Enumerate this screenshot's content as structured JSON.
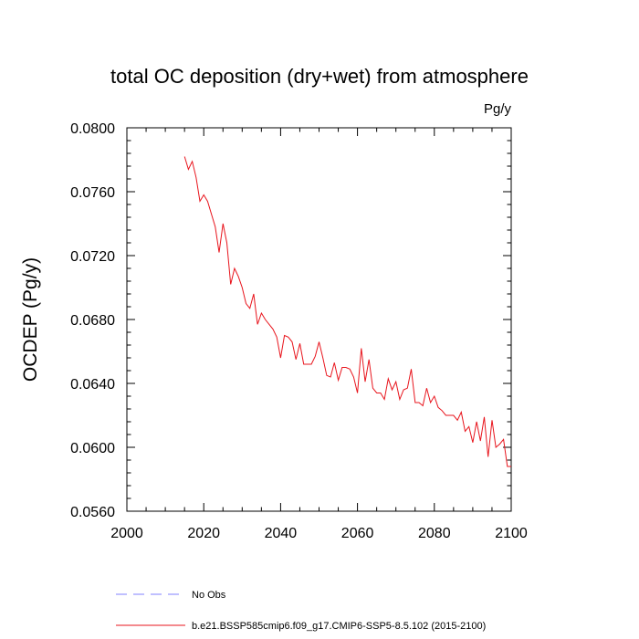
{
  "chart_data": {
    "type": "line",
    "title": "total OC deposition (dry+wet) from atmosphere",
    "units": "Pg/y",
    "xlabel": "",
    "ylabel": "OCDEP  (Pg/y)",
    "xlim": [
      2000,
      2100
    ],
    "ylim": [
      0.056,
      0.08
    ],
    "xticks": [
      2000,
      2020,
      2040,
      2060,
      2080,
      2100
    ],
    "xtick_labels": [
      "2000",
      "2020",
      "2040",
      "2060",
      "2080",
      "2100"
    ],
    "yticks": [
      0.056,
      0.06,
      0.064,
      0.068,
      0.072,
      0.076,
      0.08
    ],
    "ytick_labels": [
      "0.0560",
      "0.0600",
      "0.0640",
      "0.0680",
      "0.0720",
      "0.0760",
      "0.0800"
    ],
    "legend_position": "bottom",
    "series": [
      {
        "name": "b.e21.BSSP585cmip6.f09_g17.CMIP6-SSP5-8.5.102 (2015-2100)",
        "color": "#e8141c",
        "style": "solid",
        "x": [
          2015,
          2016,
          2017,
          2018,
          2019,
          2020,
          2021,
          2022,
          2023,
          2024,
          2025,
          2026,
          2027,
          2028,
          2029,
          2030,
          2031,
          2032,
          2033,
          2034,
          2035,
          2036,
          2037,
          2038,
          2039,
          2040,
          2041,
          2042,
          2043,
          2044,
          2045,
          2046,
          2047,
          2048,
          2049,
          2050,
          2051,
          2052,
          2053,
          2054,
          2055,
          2056,
          2057,
          2058,
          2059,
          2060,
          2061,
          2062,
          2063,
          2064,
          2065,
          2066,
          2067,
          2068,
          2069,
          2070,
          2071,
          2072,
          2073,
          2074,
          2075,
          2076,
          2077,
          2078,
          2079,
          2080,
          2081,
          2082,
          2083,
          2084,
          2085,
          2086,
          2087,
          2088,
          2089,
          2090,
          2091,
          2092,
          2093,
          2094,
          2095,
          2096,
          2097,
          2098,
          2099,
          2100
        ],
        "values": [
          0.0782,
          0.0774,
          0.0779,
          0.0769,
          0.0754,
          0.0758,
          0.0754,
          0.0746,
          0.0738,
          0.0722,
          0.074,
          0.0728,
          0.0702,
          0.0712,
          0.0707,
          0.07,
          0.069,
          0.0687,
          0.0696,
          0.0677,
          0.0684,
          0.068,
          0.0677,
          0.0674,
          0.0669,
          0.0656,
          0.067,
          0.0669,
          0.0666,
          0.0655,
          0.0665,
          0.0652,
          0.0652,
          0.0652,
          0.0657,
          0.0666,
          0.0656,
          0.0645,
          0.0644,
          0.0653,
          0.0642,
          0.065,
          0.065,
          0.0649,
          0.0644,
          0.0634,
          0.0662,
          0.0641,
          0.0655,
          0.0637,
          0.0634,
          0.0634,
          0.063,
          0.0643,
          0.0636,
          0.0641,
          0.063,
          0.0636,
          0.0637,
          0.0649,
          0.0628,
          0.0628,
          0.0626,
          0.0637,
          0.0628,
          0.0632,
          0.0625,
          0.0623,
          0.062,
          0.062,
          0.062,
          0.0617,
          0.0622,
          0.061,
          0.0613,
          0.0603,
          0.0616,
          0.0604,
          0.0619,
          0.0594,
          0.0617,
          0.06,
          0.0602,
          0.0605,
          0.0588,
          0.0588
        ]
      }
    ],
    "reference_series": {
      "name": "No Obs",
      "color": "#8080ff",
      "style": "dashed"
    }
  }
}
